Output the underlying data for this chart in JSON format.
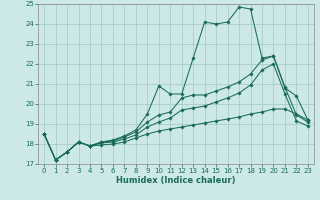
{
  "xlabel": "Humidex (Indice chaleur)",
  "bg_color": "#cce8e8",
  "grid_color": "#aacccc",
  "line_color": "#1a6b5a",
  "xlim": [
    -0.5,
    23.5
  ],
  "ylim": [
    17,
    25
  ],
  "yticks": [
    17,
    18,
    19,
    20,
    21,
    22,
    23,
    24,
    25
  ],
  "xticks": [
    0,
    1,
    2,
    3,
    4,
    5,
    6,
    7,
    8,
    9,
    10,
    11,
    12,
    13,
    14,
    15,
    16,
    17,
    18,
    19,
    20,
    21,
    22,
    23
  ],
  "series": [
    {
      "x": [
        0,
        1,
        2,
        3,
        4,
        5,
        6,
        7,
        8,
        9,
        10,
        11,
        12,
        13,
        14,
        15,
        16,
        17,
        18,
        19,
        20,
        21,
        22,
        23
      ],
      "y": [
        18.5,
        17.2,
        17.6,
        18.1,
        17.9,
        18.1,
        18.2,
        18.4,
        18.7,
        19.5,
        20.9,
        20.5,
        20.5,
        22.3,
        24.1,
        24.0,
        24.1,
        24.85,
        24.75,
        22.3,
        22.4,
        20.8,
        20.4,
        19.2
      ]
    },
    {
      "x": [
        0,
        1,
        2,
        3,
        4,
        5,
        6,
        7,
        8,
        9,
        10,
        11,
        12,
        13,
        14,
        15,
        16,
        17,
        18,
        19,
        20,
        21,
        22,
        23
      ],
      "y": [
        18.5,
        17.2,
        17.6,
        18.1,
        17.9,
        18.1,
        18.15,
        18.35,
        18.6,
        19.1,
        19.45,
        19.6,
        20.3,
        20.45,
        20.45,
        20.65,
        20.85,
        21.1,
        21.5,
        22.2,
        22.4,
        20.85,
        19.45,
        19.1
      ]
    },
    {
      "x": [
        0,
        1,
        2,
        3,
        4,
        5,
        6,
        7,
        8,
        9,
        10,
        11,
        12,
        13,
        14,
        15,
        16,
        17,
        18,
        19,
        20,
        21,
        22,
        23
      ],
      "y": [
        18.5,
        17.2,
        17.6,
        18.1,
        17.9,
        18.05,
        18.1,
        18.25,
        18.45,
        18.85,
        19.1,
        19.3,
        19.7,
        19.8,
        19.9,
        20.1,
        20.3,
        20.55,
        20.95,
        21.7,
        22.0,
        20.5,
        19.15,
        18.9
      ]
    },
    {
      "x": [
        0,
        1,
        2,
        3,
        4,
        5,
        6,
        7,
        8,
        9,
        10,
        11,
        12,
        13,
        14,
        15,
        16,
        17,
        18,
        19,
        20,
        21,
        22,
        23
      ],
      "y": [
        18.5,
        17.2,
        17.6,
        18.1,
        17.9,
        17.95,
        18.0,
        18.1,
        18.3,
        18.5,
        18.65,
        18.75,
        18.85,
        18.95,
        19.05,
        19.15,
        19.25,
        19.35,
        19.5,
        19.6,
        19.75,
        19.75,
        19.5,
        19.2
      ]
    }
  ]
}
